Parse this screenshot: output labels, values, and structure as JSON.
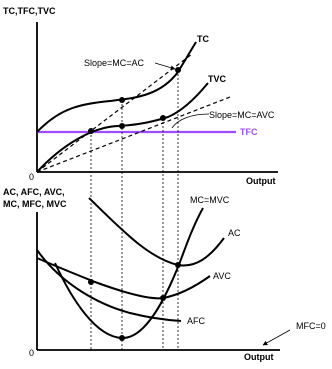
{
  "top": {
    "y_label": "TC,TFC,TVC",
    "x_label": "Output",
    "origin": "0",
    "curves": {
      "tc": "TC",
      "tvc": "TVC",
      "tfc": "TFC"
    },
    "annotations": {
      "slope_ac": "Slope=MC=AC",
      "slope_avc": "Slope=MC=AVC"
    },
    "colors": {
      "tfc": "#9b4dff",
      "curve": "#000000"
    }
  },
  "bottom": {
    "y_label_line1": "AC, AFC, AVC,",
    "y_label_line2": "MC, MFC, MVC",
    "x_label": "Output",
    "origin": "0",
    "curves": {
      "mc": "MC=MVC",
      "ac": "AC",
      "avc": "AVC",
      "afc": "AFC"
    },
    "annotations": {
      "mfc": "MFC=0"
    }
  }
}
